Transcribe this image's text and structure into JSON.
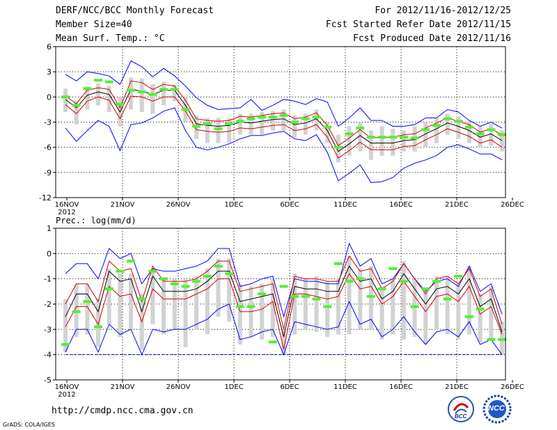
{
  "header": {
    "title": "DERF/NCC/BCC Monthly Forecast",
    "member_size": "Member Size=40",
    "variable1": "Mean Surf. Temp.: °C",
    "period": "For 2012/11/16-2012/12/25",
    "fcst_started": "Fcst Started Refer Date 2012/11/15",
    "fcst_produced": "Fcst Produced Date 2012/11/16"
  },
  "footer": {
    "url": "http://cmdp.ncc.cma.gov.cn",
    "grads": "GrADS: COLA/IGES",
    "logo_left_text": "BCC",
    "logo_right_text": "NCC"
  },
  "colors": {
    "line_blue": "#0000ff",
    "line_red": "#d40000",
    "line_black": "#000000",
    "box_gray": "#d2d2d2",
    "marker_green": "#55ee33",
    "grid": "#000000"
  },
  "chart_data": [
    {
      "type": "line",
      "title": "Mean Surf. Temp.: °C",
      "year_label": "2012",
      "xlabels": [
        "16NOV",
        "21NOV",
        "26NOV",
        "1DEC",
        "6DEC",
        "11DEC",
        "16DEC",
        "21DEC",
        "26DEC"
      ],
      "xlim": [
        0,
        40
      ],
      "ylim": [
        -12,
        6
      ],
      "yticks": [
        6,
        3,
        0,
        -3,
        -6,
        -9,
        -12
      ],
      "ensemble_mean": [
        -0.3,
        -1.3,
        0.2,
        0.6,
        0.3,
        -1.8,
        0.9,
        0.7,
        0.3,
        0.8,
        0.8,
        -1.0,
        -3.2,
        -3.4,
        -3.5,
        -3.4,
        -3.0,
        -3.1,
        -2.9,
        -2.7,
        -2.6,
        -3.3,
        -3.1,
        -2.6,
        -4.0,
        -6.5,
        -5.6,
        -4.6,
        -5.5,
        -5.5,
        -5.5,
        -5.2,
        -5.1,
        -4.4,
        -3.8,
        -3.1,
        -3.5,
        -4.0,
        -4.8,
        -4.4,
        -5.2
      ],
      "upper_red": [
        0.1,
        -0.8,
        0.8,
        1.1,
        0.9,
        -1.3,
        1.9,
        1.7,
        0.9,
        1.5,
        1.3,
        -0.4,
        -2.6,
        -2.8,
        -2.9,
        -2.8,
        -2.3,
        -2.4,
        -2.2,
        -2.0,
        -1.9,
        -2.6,
        -2.4,
        -1.9,
        -3.4,
        -5.8,
        -4.9,
        -3.9,
        -4.9,
        -4.8,
        -4.8,
        -4.5,
        -4.4,
        -3.7,
        -3.1,
        -2.5,
        -2.9,
        -3.3,
        -4.2,
        -3.8,
        -4.5
      ],
      "lower_red": [
        -0.9,
        -2.0,
        -0.5,
        0.0,
        -0.4,
        -2.6,
        0.1,
        0.0,
        -0.5,
        0.0,
        0.0,
        -1.7,
        -3.9,
        -4.1,
        -4.2,
        -4.1,
        -3.7,
        -3.8,
        -3.6,
        -3.4,
        -3.3,
        -4.0,
        -3.8,
        -3.3,
        -4.8,
        -7.3,
        -6.4,
        -5.4,
        -6.3,
        -6.3,
        -6.3,
        -5.9,
        -5.8,
        -5.1,
        -4.5,
        -3.8,
        -4.2,
        -4.7,
        -5.5,
        -5.1,
        -6.0
      ],
      "upper_blue": [
        2.7,
        1.9,
        3.0,
        2.8,
        2.5,
        1.5,
        4.3,
        3.6,
        2.4,
        3.4,
        2.5,
        1.3,
        -0.1,
        -1.0,
        -1.5,
        -1.4,
        -1.3,
        -0.3,
        -1.6,
        -1.0,
        -0.3,
        -0.5,
        -0.9,
        -0.2,
        -0.6,
        -3.5,
        -2.5,
        -1.3,
        -2.8,
        -2.8,
        -3.5,
        -3.5,
        -3.3,
        -2.5,
        -2.5,
        -1.5,
        -1.8,
        -2.8,
        -3.5,
        -3.0,
        -3.7
      ],
      "lower_blue": [
        -3.7,
        -5.3,
        -4.0,
        -2.8,
        -3.5,
        -6.4,
        -3.3,
        -3.1,
        -2.5,
        -1.7,
        -1.3,
        -4.0,
        -6.0,
        -6.3,
        -6.0,
        -5.6,
        -5.0,
        -4.6,
        -4.6,
        -4.3,
        -4.1,
        -5.0,
        -5.2,
        -4.5,
        -6.6,
        -10.0,
        -9.1,
        -8.1,
        -10.2,
        -10.1,
        -9.6,
        -8.5,
        -7.9,
        -7.5,
        -7.0,
        -6.0,
        -5.7,
        -6.2,
        -6.8,
        -6.8,
        -7.5
      ],
      "box_top": [
        1.0,
        -0.5,
        1.2,
        1.6,
        1.3,
        0.0,
        2.3,
        2.2,
        1.5,
        1.8,
        1.5,
        0.0,
        -2.2,
        -2.5,
        -2.5,
        -2.5,
        -2.0,
        -2.0,
        -1.8,
        -1.7,
        -1.5,
        -2.2,
        -2.0,
        -1.5,
        -3.0,
        -4.5,
        -3.5,
        -3.0,
        -4.0,
        -3.5,
        -3.8,
        -4.0,
        -3.5,
        -3.0,
        -2.5,
        -2.0,
        -2.3,
        -2.8,
        -3.5,
        -3.2,
        -4.0
      ],
      "box_bottom": [
        -1.8,
        -3.3,
        -1.5,
        -1.0,
        -1.8,
        -3.5,
        -1.5,
        -1.8,
        -2.0,
        -1.0,
        -0.5,
        -3.0,
        -5.0,
        -5.5,
        -5.5,
        -5.5,
        -4.5,
        -4.5,
        -4.5,
        -4.0,
        -4.0,
        -4.8,
        -4.5,
        -4.0,
        -5.5,
        -7.8,
        -7.0,
        -6.5,
        -7.5,
        -7.0,
        -7.0,
        -6.5,
        -6.5,
        -6.0,
        -5.5,
        -4.5,
        -5.0,
        -5.5,
        -6.0,
        -5.8,
        -6.5
      ],
      "observed_markers": [
        0.0,
        -1.0,
        1.0,
        2.0,
        1.8,
        -0.9,
        0.8,
        0.6,
        0.3,
        0.9,
        0.9,
        -1.5,
        -3.5,
        -3.2,
        -3.8,
        -3.2,
        -2.9,
        -2.6,
        -2.4,
        -2.4,
        -2.2,
        -3.0,
        -2.6,
        -2.4,
        -3.6,
        -6.0,
        -4.4,
        -3.7,
        -4.8,
        -4.8,
        -4.8,
        -4.8,
        -4.9,
        -3.9,
        -3.4,
        -2.6,
        -2.9,
        -3.6,
        -4.4,
        -3.9,
        -4.5
      ]
    },
    {
      "type": "line",
      "title": "Prec.: log(mm/d)",
      "year_label": "2012",
      "xlabels": [
        "16NOV",
        "21NOV",
        "26NOV",
        "1DEC",
        "6DEC",
        "11DEC",
        "16DEC",
        "21DEC",
        "26DEC"
      ],
      "xlim": [
        0,
        40
      ],
      "ylim": [
        -5,
        1
      ],
      "yticks": [
        1,
        0,
        -1,
        -2,
        -3,
        -4,
        -5
      ],
      "baseline": -4,
      "ensemble_mean": [
        -2.5,
        -1.6,
        -1.6,
        -2.3,
        -0.7,
        -1.1,
        -1.0,
        -2.3,
        -0.9,
        -1.5,
        -1.5,
        -1.5,
        -1.4,
        -1.1,
        -0.7,
        -0.7,
        -1.9,
        -1.8,
        -1.7,
        -1.6,
        -3.3,
        -1.3,
        -1.4,
        -1.4,
        -1.5,
        -1.5,
        -0.5,
        -1.1,
        -1.0,
        -1.8,
        -1.5,
        -0.8,
        -1.4,
        -2.0,
        -1.4,
        -1.3,
        -1.6,
        -1.0,
        -2.1,
        -1.8,
        -3.1
      ],
      "upper_red": [
        -2.0,
        -1.2,
        -1.2,
        -1.9,
        -0.3,
        -0.7,
        -0.6,
        -1.9,
        -0.5,
        -1.1,
        -1.1,
        -1.1,
        -1.0,
        -0.7,
        -0.3,
        -0.3,
        -1.5,
        -1.4,
        -1.3,
        -1.2,
        -3.0,
        -0.9,
        -1.0,
        -1.0,
        -1.1,
        -1.1,
        -0.1,
        -0.7,
        -0.6,
        -1.4,
        -1.1,
        -0.4,
        -1.0,
        -1.6,
        -1.0,
        -0.9,
        -1.2,
        -0.6,
        -1.7,
        -1.4,
        -2.8
      ],
      "lower_red": [
        -2.9,
        -2.1,
        -2.1,
        -2.8,
        -1.3,
        -1.7,
        -1.6,
        -2.7,
        -1.4,
        -1.8,
        -1.8,
        -1.8,
        -1.6,
        -1.4,
        -1.0,
        -1.0,
        -2.3,
        -2.3,
        -2.2,
        -1.9,
        -3.8,
        -1.6,
        -1.6,
        -1.7,
        -1.8,
        -1.7,
        -0.8,
        -1.4,
        -1.3,
        -2.0,
        -1.7,
        -1.1,
        -1.7,
        -2.3,
        -1.7,
        -1.6,
        -1.9,
        -1.3,
        -2.4,
        -2.1,
        -3.2
      ],
      "upper_blue": [
        -0.8,
        -0.4,
        -0.4,
        -1.0,
        0.2,
        -0.2,
        0.0,
        -1.2,
        -0.6,
        -0.7,
        -0.7,
        -0.6,
        -0.5,
        -0.3,
        0.2,
        0.2,
        -1.3,
        -1.2,
        -1.0,
        -0.9,
        -2.5,
        -1.0,
        -1.1,
        -1.1,
        -1.2,
        -1.2,
        0.4,
        -0.5,
        -0.2,
        -1.2,
        -1.0,
        -0.4,
        -1.0,
        -1.5,
        -1.1,
        -1.0,
        -1.3,
        -0.5,
        -1.5,
        -1.2,
        -2.4
      ],
      "lower_blue": [
        -3.9,
        -3.0,
        -3.0,
        -3.9,
        -2.8,
        -3.2,
        -3.0,
        -4.0,
        -3.0,
        -3.1,
        -3.0,
        -3.0,
        -2.8,
        -2.6,
        -2.2,
        -2.0,
        -3.4,
        -3.3,
        -3.1,
        -3.0,
        -4.0,
        -2.7,
        -2.8,
        -2.9,
        -3.0,
        -2.9,
        -1.9,
        -2.8,
        -2.6,
        -3.3,
        -3.0,
        -2.5,
        -3.1,
        -3.6,
        -3.1,
        -3.0,
        -3.3,
        -2.7,
        -3.6,
        -3.4,
        -4.0
      ],
      "box_top": [
        -1.8,
        -1.2,
        -1.2,
        -1.8,
        -0.6,
        -0.8,
        -0.8,
        -1.6,
        -0.6,
        -1.0,
        -1.0,
        -1.0,
        -0.9,
        -0.6,
        -0.2,
        -0.2,
        -1.2,
        -1.3,
        -1.2,
        -1.0,
        -3.0,
        -0.8,
        -1.0,
        -0.9,
        -1.1,
        -1.0,
        -0.1,
        -0.6,
        -0.5,
        -1.3,
        -1.0,
        -0.3,
        -1.0,
        -1.5,
        -0.9,
        -0.9,
        -1.2,
        -0.5,
        -1.6,
        -1.3,
        -2.7
      ],
      "box_bottom": [
        -3.9,
        -3.3,
        -3.2,
        -3.7,
        -2.8,
        -3.3,
        -3.0,
        -3.8,
        -2.8,
        -3.2,
        -3.0,
        -3.7,
        -3.0,
        -3.2,
        -2.5,
        -2.7,
        -3.6,
        -3.3,
        -3.4,
        -3.3,
        -4.0,
        -3.2,
        -3.0,
        -3.1,
        -3.3,
        -3.2,
        -3.2,
        -3.0,
        -3.0,
        -3.4,
        -3.2,
        -3.4,
        -3.3,
        -3.6,
        -3.0,
        -3.2,
        -3.4,
        -3.2,
        -3.5,
        -3.4,
        -4.0
      ],
      "observed_markers": [
        -3.6,
        -2.3,
        -1.9,
        -2.9,
        -1.4,
        -0.7,
        -0.3,
        -1.8,
        -0.7,
        -1.0,
        -1.2,
        -1.3,
        -1.1,
        -0.9,
        -0.5,
        -0.8,
        -2.1,
        -2.1,
        -1.6,
        -3.5,
        -1.3,
        -1.7,
        -1.7,
        -1.8,
        -2.1,
        -0.4,
        -1.1,
        -1.0,
        -1.7,
        -1.4,
        -0.6,
        -1.1,
        -2.1,
        -1.4,
        -1.1,
        -1.8,
        -0.9,
        -2.5,
        -2.2,
        -3.4,
        -3.4
      ]
    }
  ]
}
